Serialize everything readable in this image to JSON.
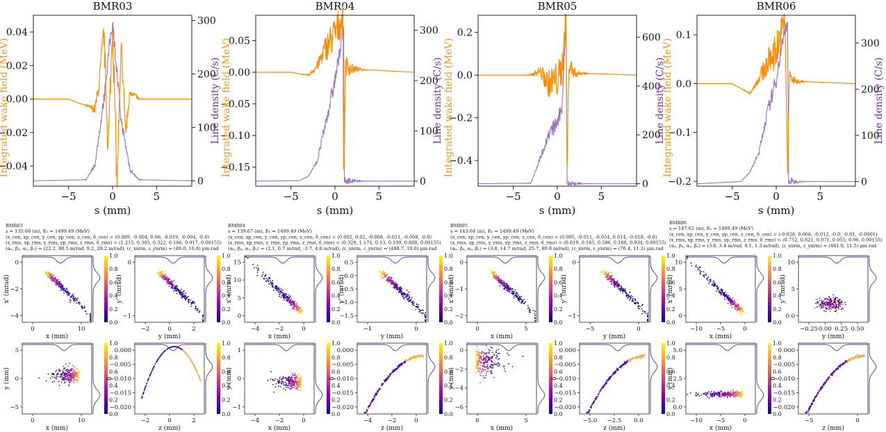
{
  "colors": {
    "wake": "#ff8c00",
    "density": "#9a70c8",
    "density_axis_label": "#7030a0",
    "wake_axis_label": "#f7941d",
    "colormap": [
      "#0d0887",
      "#5b02a3",
      "#9a179b",
      "#cb4678",
      "#eb7852",
      "#fbb32f",
      "#f0f921"
    ]
  },
  "panels": [
    {
      "name": "BMR03",
      "wake": {
        "title": "BMR03",
        "xlabel": "s (mm)",
        "ylabel_left": "Integrated wake field (MeV)",
        "ylabel_right": "Line density (C/s)",
        "xticks": [
          -5,
          0,
          5
        ],
        "yticks_left": [
          -0.04,
          -0.02,
          0.0,
          0.02,
          0.04
        ],
        "yticks_left_labels": [
          "−0.04",
          "−0.02",
          "0.00",
          "0.02",
          "0.04"
        ],
        "yticks_right": [
          0,
          100,
          200,
          300
        ],
        "yticks_right_labels": [
          "0",
          "100",
          "200",
          "300"
        ]
      },
      "info": [
        "BMR03",
        "s = 135.68 (m), E₀ = 1499.49 (MeV)",
        "(x_cen, xp_cen, y_cen, yp_cen, z_cen, δ_cen) = (0.009, -0.004, 0.06, -0.019, -0.004, -0.0)",
        "(x_rms, xp_rms, y_rms, yp_rms, z_rms, δ_rms) = (1.215, 0.305, 0.322, 0.106, 0.917, 0.00155)",
        "(αₓ, βₓ, αᵧ, βᵧ) = (22.2, 88.5 m/rad, 9.2, 28.2 m/rad),  (ε_xnrm, ε_ynrm) = (49.0, 10.8) μm.rad"
      ],
      "phase": [
        {
          "xlabel": "x (mm)",
          "ylabel": "x' (mrad)",
          "xticks": [
            0,
            10
          ],
          "yticks": [
            -4,
            -2,
            0
          ],
          "yticks_labels": [
            "−4",
            "−2",
            "0"
          ]
        },
        {
          "xlabel": "y (mm)",
          "ylabel": "y' (mrad)",
          "xticks": [
            -2,
            0,
            2
          ],
          "yticks": [
            -1,
            0
          ],
          "yticks_labels": [
            "−1",
            "0"
          ]
        },
        {
          "xlabel": "x (mm)",
          "ylabel": "y (mm)",
          "xticks": [
            0,
            10
          ],
          "yticks": [
            -5,
            0,
            5
          ],
          "yticks_labels": [
            "−5",
            "0",
            "5"
          ]
        },
        {
          "xlabel": "z (mm)",
          "ylabel": "δ",
          "xticks": [
            -2,
            0,
            2
          ],
          "yticks": [
            -0.02,
            -0.015,
            -0.01,
            -0.005,
            0.0
          ],
          "yticks_labels": [
            "−0.020",
            "−0.015",
            "−0.010",
            "−0.005",
            "0.000"
          ]
        }
      ],
      "colorbar_ticks": [
        "0.0",
        "0.2",
        "0.4",
        "0.6",
        "0.8",
        "1.0"
      ]
    },
    {
      "name": "BMR04",
      "wake": {
        "title": "BMR04",
        "xlabel": "s (mm)",
        "ylabel_left": "Integrated wake field (MeV)",
        "ylabel_right": "Line density (C/s)",
        "xticks": [
          -5,
          0,
          5
        ],
        "yticks_left": [
          -0.15,
          -0.1,
          -0.05,
          0.0,
          0.05
        ],
        "yticks_left_labels": [
          "−0.15",
          "−0.10",
          "−0.05",
          "0.00",
          "0.05"
        ],
        "yticks_right": [
          0,
          100,
          200,
          300
        ],
        "yticks_right_labels": [
          "0",
          "100",
          "200",
          "300"
        ]
      },
      "info": [
        "BMR04",
        "s = 139.67 (m), E₀ = 1499.49 (MeV)",
        "(x_cen, xp_cen, y_cen, yp_cen, z_cen, δ_cen) = (0.002, 0.02, -0.008, -0.011, -0.008, -0.0)",
        "(x_rms, xp_rms, y_rms, yp_rms, z_rms, δ_rms) = (0.329, 1.174, 0.13, 0.109, 0.888, 0.00155)",
        "(αₓ, βₓ, αᵧ, βᵧ) = (2.1, 0.7 m/rad, -3.7, 4.6 m/rad),  (ε_xnrm, ε_ynrm) = (488.7, 10.8) μm.rad"
      ],
      "phase": [
        {
          "xlabel": "x (mm)",
          "ylabel": "x' (mrad)",
          "xticks": [
            -4,
            -2,
            0
          ],
          "yticks": [
            0,
            5,
            10,
            15
          ],
          "yticks_labels": [
            "0",
            "5",
            "10",
            "15"
          ]
        },
        {
          "xlabel": "y (mm)",
          "ylabel": "y' (mrad)",
          "xticks": [
            -1,
            0
          ],
          "yticks": [
            -1.5,
            -1.0,
            -0.5,
            0.0,
            0.5
          ],
          "yticks_labels": [
            "−1.5",
            "−1.0",
            "−0.5",
            "0.0",
            "0.5"
          ]
        },
        {
          "xlabel": "x (mm)",
          "ylabel": "y (mm)",
          "xticks": [
            -4,
            -2,
            0
          ],
          "yticks": [
            -1,
            0,
            1
          ],
          "yticks_labels": [
            "−1",
            "0",
            "1"
          ]
        },
        {
          "xlabel": "z (mm)",
          "ylabel": "δ",
          "xticks": [
            -4,
            -2,
            0
          ],
          "yticks": [
            -0.02,
            -0.015,
            -0.01,
            -0.005,
            0.0
          ],
          "yticks_labels": [
            "−0.020",
            "−0.015",
            "−0.010",
            "−0.005",
            "0.000"
          ]
        }
      ],
      "colorbar_ticks": [
        "0.0",
        "0.2",
        "0.4",
        "0.6",
        "0.8",
        "1.0"
      ]
    },
    {
      "name": "BMR05",
      "wake": {
        "title": "BMR05",
        "xlabel": "s (mm)",
        "ylabel_left": "Integrated wake field (MeV)",
        "ylabel_right": "Line density (C/s)",
        "xticks": [
          -5,
          0,
          5
        ],
        "yticks_left": [
          -0.4,
          -0.2,
          0.0,
          0.2
        ],
        "yticks_left_labels": [
          "−0.4",
          "−0.2",
          "0.0",
          "0.2"
        ],
        "yticks_right": [
          0,
          200,
          400,
          600
        ],
        "yticks_right_labels": [
          "0",
          "200",
          "400",
          "600"
        ]
      },
      "info": [
        "BMR05",
        "s = 143.64 (m), E₀ = 1499.49 (MeV)",
        "(x_cen, xp_cen, y_cen, yp_cen, z_cen, δ_cen) = (0.005, -0.011, -0.054, 0.014, -0.018, -0.0)",
        "(x_rms, xp_rms, y_rms, yp_rms, z_rms, δ_rms) = (0.619, 0.165, 0.586, 0.168, 0.934, 0.00155)",
        "(αₓ, βₓ, αᵧ, βᵧ) = (3.8, 14.7 m/rad, 25.7, 89.8 m/rad),  (ε_xnrm, ε_ynrm) = (76.4, 11.2) μm.rad"
      ],
      "phase": [
        {
          "xlabel": "x (mm)",
          "ylabel": "x' (mrad)",
          "xticks": [
            0,
            5
          ],
          "yticks": [
            -2,
            -1,
            0
          ],
          "yticks_labels": [
            "−2",
            "−1",
            "0"
          ]
        },
        {
          "xlabel": "y (mm)",
          "ylabel": "y' (mrad)",
          "xticks": [
            -5,
            0
          ],
          "yticks": [
            -1,
            0
          ],
          "yticks_labels": [
            "−1",
            "0"
          ]
        },
        {
          "xlabel": "x (mm)",
          "ylabel": "y (mm)",
          "xticks": [
            0,
            5
          ],
          "yticks": [
            -6,
            -4,
            -2,
            0
          ],
          "yticks_labels": [
            "−6",
            "−4",
            "−2",
            "0"
          ]
        },
        {
          "xlabel": "z (mm)",
          "ylabel": "δ",
          "xticks": [
            -5.0,
            -2.5,
            0.0
          ],
          "xticks_labels": [
            "−5.0",
            "−2.5",
            "0.0"
          ],
          "yticks": [
            -0.02,
            -0.015,
            -0.01,
            -0.005,
            0.0
          ],
          "yticks_labels": [
            "−0.020",
            "−0.015",
            "−0.010",
            "−0.005",
            "0.000"
          ]
        }
      ],
      "colorbar_ticks": [
        "0.0",
        "0.2",
        "0.4",
        "0.6",
        "0.8",
        "1.0"
      ]
    },
    {
      "name": "BMR06",
      "wake": {
        "title": "BMR06",
        "xlabel": "s (mm)",
        "ylabel_left": "Integrated wake field (MeV)",
        "ylabel_right": "Line density (C/s)",
        "xticks": [
          -5,
          0,
          5
        ],
        "yticks_left": [
          -0.2,
          -0.1,
          0.0,
          0.1
        ],
        "yticks_left_labels": [
          "−0.2",
          "−0.1",
          "0.0",
          "0.1"
        ],
        "yticks_right": [
          0,
          100,
          200,
          300
        ],
        "yticks_right_labels": [
          "0",
          "100",
          "200",
          "300"
        ]
      },
      "info": [
        "BMR06",
        "s = 147.62 (m), E₀ = 1499.49 (MeV)",
        "(x_cen, xp_cen, y_cen, yp_cen, z_cen, δ_cen) = (-0.028, 0.066, -0.012, -0.0, -0.01, -0.0001)",
        "(x_rms, xp_rms, y_rms, yp_rms, z_rms, δ_rms) = (0.752, 0.821, 0.071, 0.055, 0.96, 0.00155)",
        "(αₓ, βₓ, αᵧ, βᵧ) = (3.6, 3.4 m/rad, 0.1, 1.3 m/rad),  (ε_xnrm, ε_ynrm) = (481.0, 11.5) μm.rad"
      ],
      "phase": [
        {
          "xlabel": "x (mm)",
          "ylabel": "x' (mrad)",
          "xticks": [
            -10,
            -5,
            0
          ],
          "yticks": [
            0,
            5,
            10
          ],
          "yticks_labels": [
            "0",
            "5",
            "10"
          ]
        },
        {
          "xlabel": "y (mm)",
          "ylabel": "y' (mrad)",
          "xticks": [
            -0.25,
            0.0,
            0.25,
            0.5
          ],
          "xticks_labels": [
            "−0.25",
            "0.00",
            "0.25",
            "0.50"
          ],
          "yticks": [
            0,
            5,
            10
          ],
          "yticks_labels": [
            "0.0",
            "5",
            "10"
          ]
        },
        {
          "xlabel": "x (mm)",
          "ylabel": "y (mm)",
          "xticks": [
            -10,
            -5,
            0
          ],
          "yticks": [
            0,
            2.5,
            5.0
          ],
          "yticks_labels": [
            "0.0",
            "2.5",
            "5.0"
          ]
        },
        {
          "xlabel": "z (mm)",
          "ylabel": "δ",
          "xticks": [
            -5,
            0
          ],
          "yticks": [
            -0.02,
            -0.015,
            -0.01,
            -0.005,
            0.0
          ],
          "yticks_labels": [
            "−0.020",
            "−0.015",
            "−0.010",
            "−0.005",
            "0.000"
          ]
        }
      ],
      "colorbar_ticks": [
        "0.0",
        "0.2",
        "0.4",
        "0.6",
        "0.8",
        "1.0"
      ]
    }
  ],
  "chart_data": [
    {
      "type": "line",
      "title": "BMR03",
      "xlabel": "s (mm)",
      "ylabel": "Integrated wake field (MeV)",
      "ylabel_right": "Line density (C/s)",
      "xlim": [
        -9,
        9
      ],
      "ylim": [
        -0.052,
        0.05
      ],
      "ylim_right": [
        -10,
        310
      ],
      "series": [
        {
          "name": "Integrated wake field (MeV)",
          "x": [
            -9,
            -5,
            -3,
            -2,
            -1.5,
            -1,
            -0.5,
            0,
            0.5,
            1,
            1.5,
            2,
            3,
            9
          ],
          "values": [
            0,
            0,
            -0.004,
            -0.006,
            0.01,
            0.04,
            -0.03,
            0.045,
            -0.05,
            0.03,
            -0.02,
            0.005,
            0,
            0
          ]
        },
        {
          "name": "Line density (C/s)",
          "x": [
            -9,
            -3,
            -2,
            -1,
            -0.5,
            0,
            0.5,
            1,
            2,
            3,
            9
          ],
          "values": [
            0,
            2,
            30,
            150,
            230,
            300,
            200,
            110,
            20,
            2,
            0
          ]
        }
      ]
    },
    {
      "type": "line",
      "title": "BMR04",
      "xlabel": "s (mm)",
      "ylabel": "Integrated wake field (MeV)",
      "ylabel_right": "Line density (C/s)",
      "xlim": [
        -9,
        9
      ],
      "ylim": [
        -0.18,
        0.09
      ],
      "ylim_right": [
        -10,
        330
      ],
      "series": [
        {
          "name": "Integrated wake field (MeV)",
          "x": [
            -9,
            -5,
            -3,
            -2,
            -1,
            0,
            0.5,
            0.9,
            1.0,
            1.2,
            2,
            9
          ],
          "values": [
            0,
            0,
            -0.005,
            0.01,
            0.04,
            0.06,
            0.075,
            0.085,
            -0.17,
            0.01,
            0.005,
            0
          ]
        },
        {
          "name": "Line density (C/s)",
          "x": [
            -9,
            -4,
            -3,
            -2,
            -1,
            0,
            0.5,
            0.9,
            1.0,
            1.05,
            9
          ],
          "values": [
            0,
            1,
            10,
            40,
            120,
            200,
            250,
            310,
            300,
            0,
            0
          ]
        }
      ]
    },
    {
      "type": "line",
      "title": "BMR05",
      "xlabel": "s (mm)",
      "ylabel": "Integrated wake field (MeV)",
      "ylabel_right": "Line density (C/s)",
      "xlim": [
        -9,
        9
      ],
      "ylim": [
        -0.52,
        0.28
      ],
      "ylim_right": [
        -10,
        690
      ],
      "series": [
        {
          "name": "Integrated wake field (MeV)",
          "x": [
            -9,
            -3,
            -2,
            -1,
            0,
            0.5,
            1.0,
            1.1,
            1.3,
            2,
            9
          ],
          "values": [
            0,
            0,
            0.02,
            -0.04,
            -0.02,
            0.02,
            0.27,
            -0.5,
            0.05,
            0.01,
            0
          ]
        },
        {
          "name": "Line density (C/s)",
          "x": [
            -9,
            -3,
            -2,
            -1,
            0,
            0.5,
            1.0,
            1.1,
            1.2,
            9
          ],
          "values": [
            0,
            2,
            100,
            200,
            250,
            300,
            680,
            0,
            0,
            0
          ]
        }
      ]
    },
    {
      "type": "line",
      "title": "BMR06",
      "xlabel": "s (mm)",
      "ylabel": "Integrated wake field (MeV)",
      "ylabel_right": "Line density (C/s)",
      "xlim": [
        -9,
        9
      ],
      "ylim": [
        -0.21,
        0.14
      ],
      "ylim_right": [
        -10,
        360
      ],
      "series": [
        {
          "name": "Integrated wake field (MeV)",
          "x": [
            -9,
            -5,
            -4,
            -3,
            -2,
            -1,
            0,
            0.5,
            1.0,
            1.3,
            1.5,
            2,
            9
          ],
          "values": [
            0,
            0,
            -0.01,
            -0.02,
            0.01,
            0.04,
            0.07,
            0.1,
            0.13,
            -0.2,
            0.02,
            0.005,
            0
          ]
        },
        {
          "name": "Line density (C/s)",
          "x": [
            -9,
            -4,
            -3,
            -2,
            -1,
            0,
            0.5,
            1.0,
            1.3,
            1.4,
            9
          ],
          "values": [
            -5,
            0,
            20,
            60,
            150,
            220,
            280,
            330,
            340,
            0,
            0
          ]
        }
      ]
    }
  ]
}
